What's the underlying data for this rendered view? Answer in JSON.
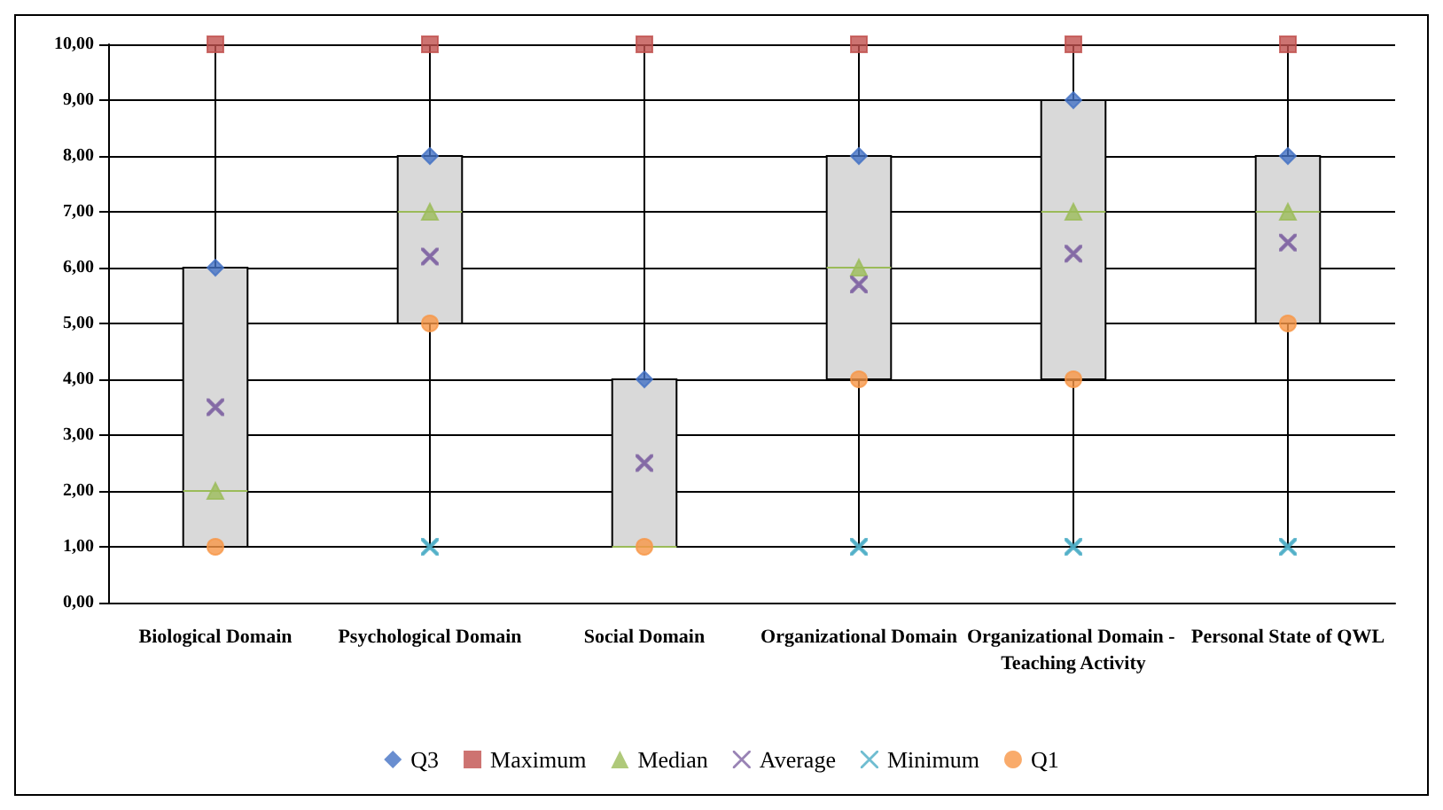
{
  "chart_data": {
    "type": "box",
    "categories": [
      "Biological Domain",
      "Psychological Domain",
      "Social Domain",
      "Organizational Domain",
      "Organizational Domain - Teaching Activity",
      "Personal State of QWL"
    ],
    "boxes": [
      {
        "low": 1,
        "q1": 1,
        "median": 2,
        "q3": 6,
        "high": 10
      },
      {
        "low": 1,
        "q1": 5,
        "median": 7,
        "q3": 8,
        "high": 10
      },
      {
        "low": 1,
        "q1": 1,
        "median": 1,
        "q3": 4,
        "high": 10
      },
      {
        "low": 1,
        "q1": 4,
        "median": 6,
        "q3": 8,
        "high": 10
      },
      {
        "low": 1,
        "q1": 4,
        "median": 7,
        "q3": 9,
        "high": 10
      },
      {
        "low": 1,
        "q1": 5,
        "median": 7,
        "q3": 8,
        "high": 10
      }
    ],
    "series": [
      {
        "name": "Q3",
        "type": "scatter",
        "color": "#4472c4",
        "marker": "diamond",
        "values": [
          6,
          8,
          4,
          8,
          9,
          8
        ]
      },
      {
        "name": "Maximum",
        "type": "scatter",
        "color": "#c0504d",
        "marker": "square",
        "values": [
          10,
          10,
          10,
          10,
          10,
          10
        ]
      },
      {
        "name": "Median",
        "type": "scatter",
        "color": "#9bbb59",
        "marker": "triangle",
        "values": [
          2,
          7,
          null,
          6,
          7,
          7
        ]
      },
      {
        "name": "Average",
        "type": "scatter",
        "color": "#8064a2",
        "marker": "cross",
        "values": [
          3.5,
          6.2,
          2.5,
          5.7,
          6.25,
          6.45
        ]
      },
      {
        "name": "Minimum",
        "type": "scatter",
        "color": "#4bacc6",
        "marker": "cross",
        "values": [
          null,
          1,
          null,
          1,
          1,
          1
        ]
      },
      {
        "name": "Q1",
        "type": "scatter",
        "color": "#f79646",
        "marker": "circle",
        "values": [
          1,
          5,
          1,
          4,
          4,
          5
        ]
      }
    ],
    "ylim": [
      0,
      10
    ],
    "yticks": [
      {
        "value": 0,
        "label": "0,00"
      },
      {
        "value": 1,
        "label": "1,00"
      },
      {
        "value": 2,
        "label": "2,00"
      },
      {
        "value": 3,
        "label": "3,00"
      },
      {
        "value": 4,
        "label": "4,00"
      },
      {
        "value": 5,
        "label": "5,00"
      },
      {
        "value": 6,
        "label": "6,00"
      },
      {
        "value": 7,
        "label": "7,00"
      },
      {
        "value": 8,
        "label": "8,00"
      },
      {
        "value": 9,
        "label": "9,00"
      },
      {
        "value": 10,
        "label": "10,00"
      }
    ],
    "grid": "y",
    "legend": "bottom"
  }
}
